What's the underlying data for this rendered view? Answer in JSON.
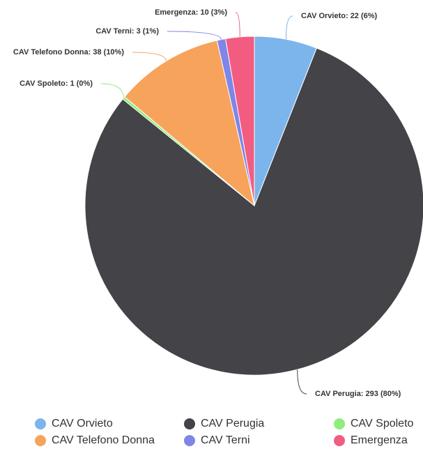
{
  "chart_data": {
    "type": "pie",
    "categories": [
      "CAV Orvieto",
      "CAV Perugia",
      "CAV Spoleto",
      "CAV Telefono Donna",
      "CAV Terni",
      "Emergenza"
    ],
    "values": [
      22,
      293,
      1,
      38,
      3,
      10
    ],
    "value_labels": [
      "CAV Orvieto: 22 (6%)",
      "CAV Perugia: 293 (80%)",
      "CAV Spoleto: 1 (0%)",
      "CAV Telefono Donna: 38 (10%)",
      "CAV Terni: 3 (1%)",
      "Emergenza: 10 (3%)"
    ],
    "colors": [
      "#7cb5ec",
      "#434348",
      "#90ed7d",
      "#f7a35c",
      "#8085e9",
      "#f15c80"
    ],
    "legend": "bottom"
  }
}
